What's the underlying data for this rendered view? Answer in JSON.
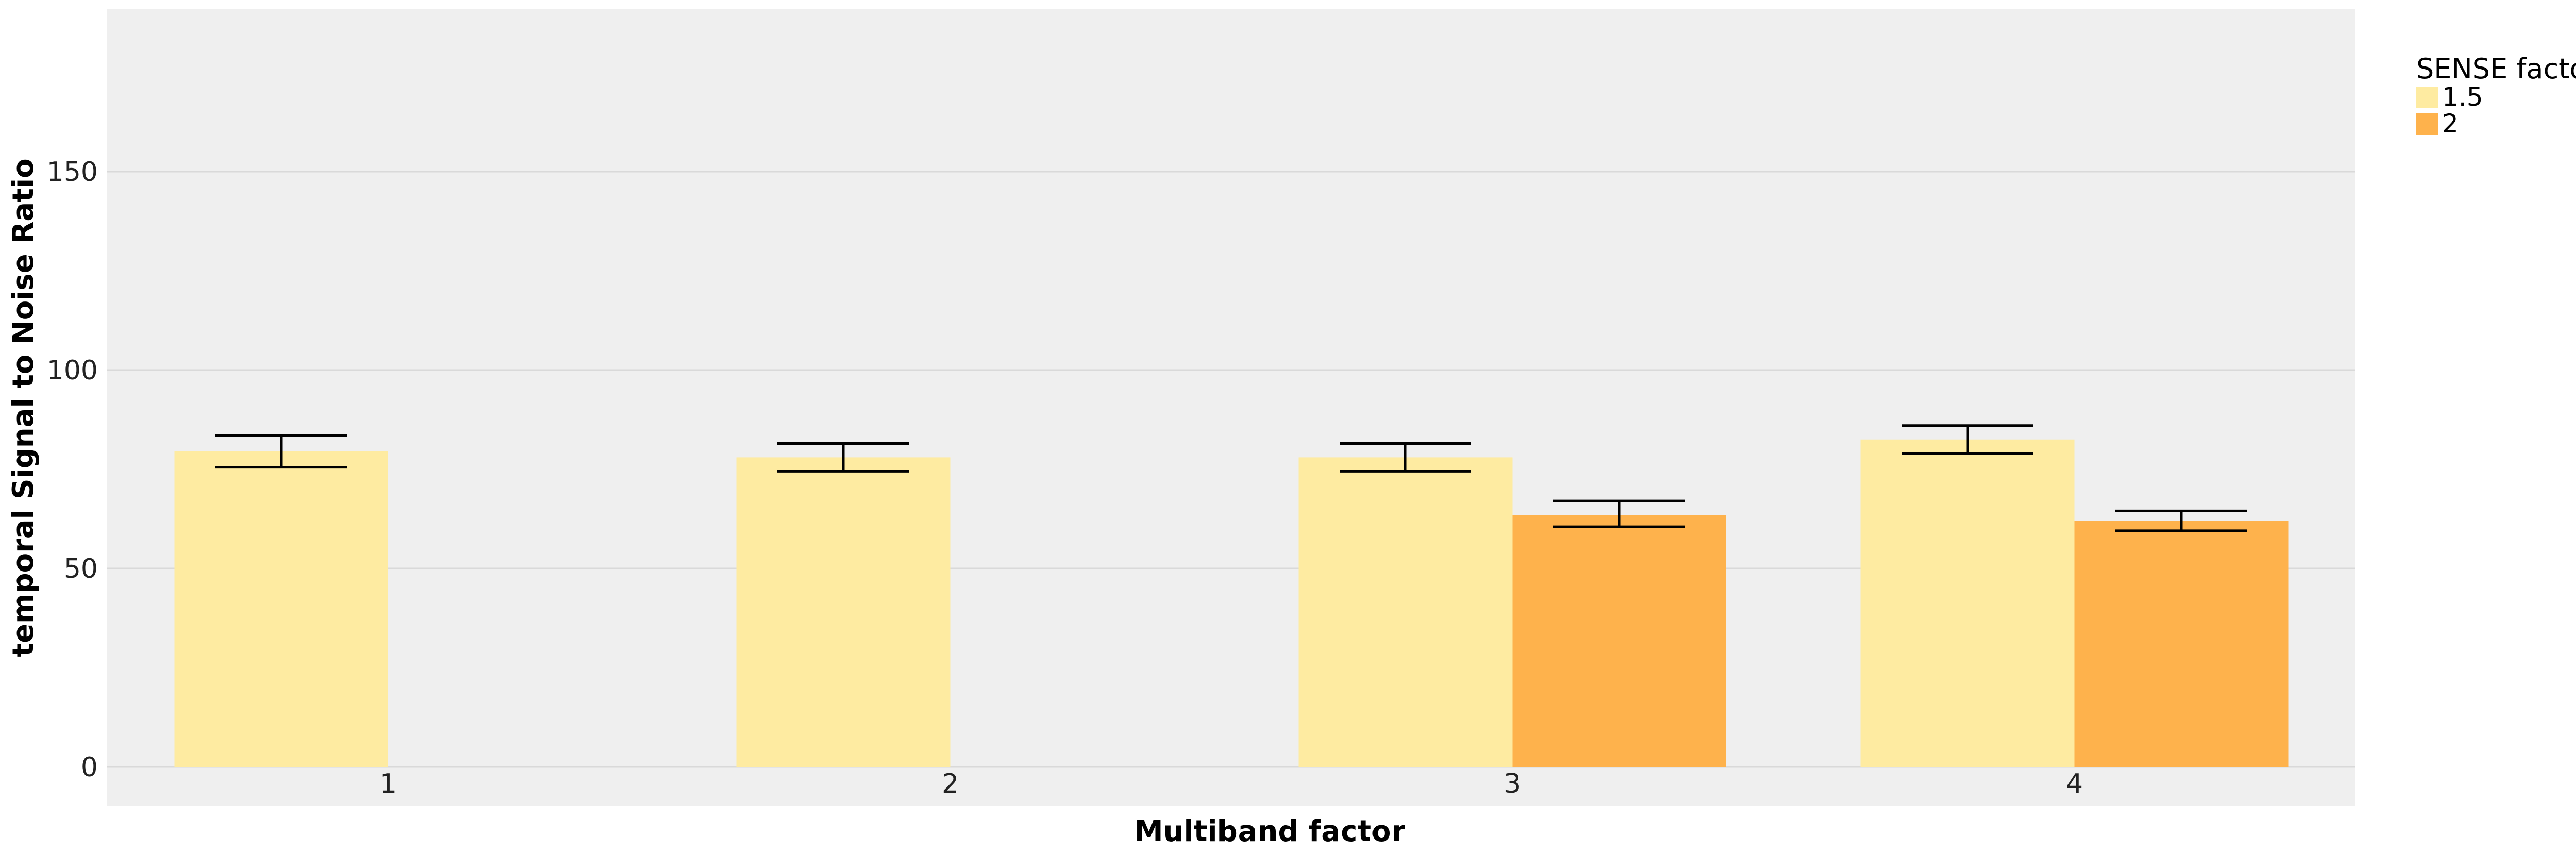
{
  "chart_data": {
    "type": "bar",
    "xlabel": "Multiband factor",
    "ylabel": "temporal Signal to Noise Ratio",
    "categories": [
      "1",
      "2",
      "3",
      "4"
    ],
    "ylim": [
      -10,
      190
    ],
    "yticks": [
      0,
      50,
      100,
      150
    ],
    "grid": true,
    "legend": {
      "title": "SENSE factor",
      "placement": "top-right"
    },
    "series": [
      {
        "name": "1.5",
        "color": "#FEEBA1",
        "values": [
          79.5,
          78,
          78,
          82.5
        ],
        "error_low": [
          75.5,
          74.5,
          74.5,
          79
        ],
        "error_high": [
          83.5,
          81.5,
          81.5,
          86
        ]
      },
      {
        "name": "2",
        "color": "#FEB24C",
        "values": [
          null,
          null,
          63.5,
          62
        ],
        "error_low": [
          null,
          null,
          60.5,
          59.5
        ],
        "error_high": [
          null,
          null,
          67,
          64.5
        ]
      }
    ],
    "colors": {
      "panel_background": "#EFEFEF",
      "grid": "#D9D9D9",
      "error_bar": "#000000"
    }
  }
}
